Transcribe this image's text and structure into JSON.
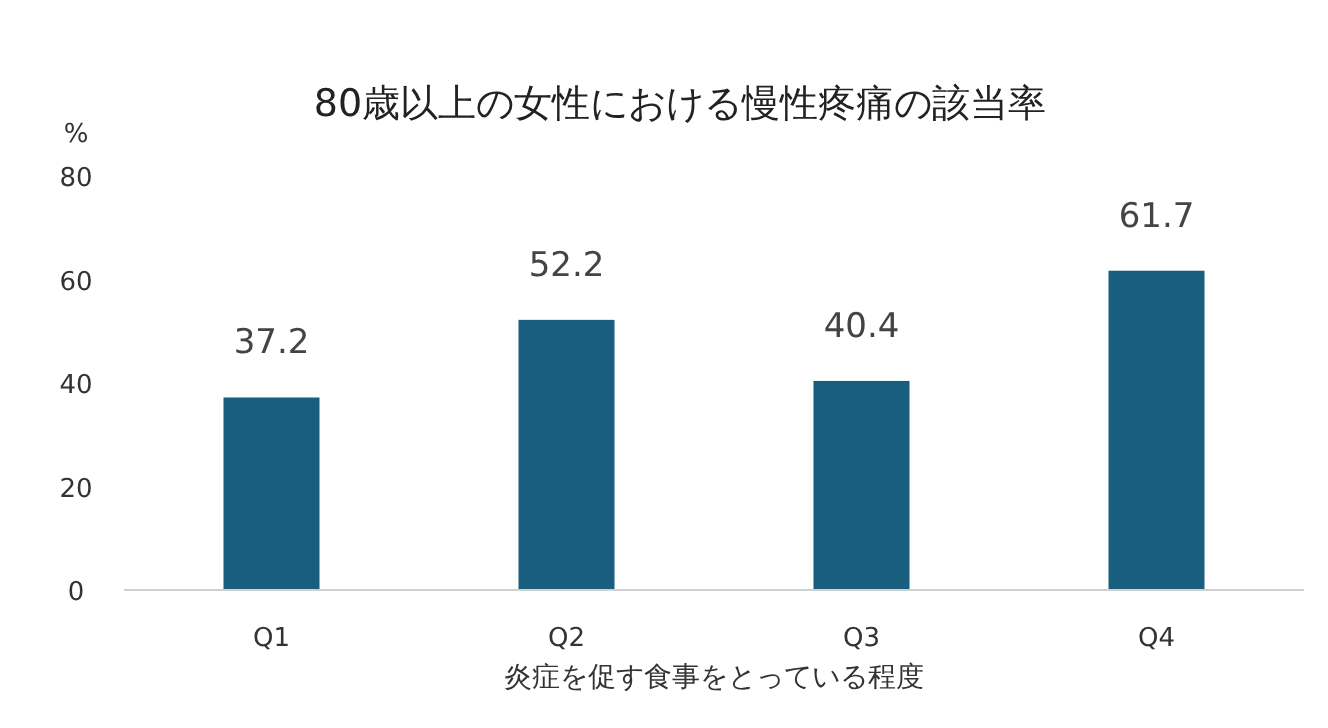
{
  "chart_data": {
    "type": "bar",
    "title": "80歳以上の女性における慢性疼痛の該当率",
    "xlabel": "炎症を促す食事をとっている程度",
    "ylabel": "%",
    "categories": [
      "Q1",
      "Q2",
      "Q3",
      "Q4"
    ],
    "values": [
      37.2,
      52.2,
      40.4,
      61.7
    ],
    "color": "#175e7f",
    "ylim": [
      0,
      80
    ],
    "yticks": [
      0,
      20,
      40,
      60,
      80
    ],
    "data_labels": true
  }
}
